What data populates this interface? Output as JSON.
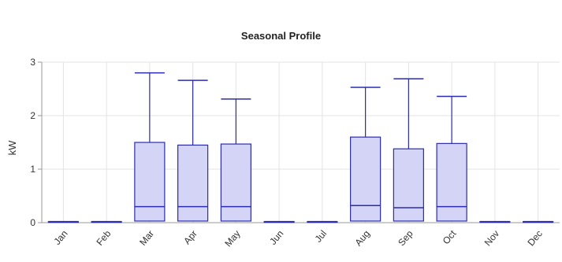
{
  "chart_data": {
    "type": "box",
    "title": "Seasonal Profile",
    "xlabel": "",
    "ylabel": "kW",
    "ylim": [
      0,
      3
    ],
    "yticks": [
      0,
      1,
      2,
      3
    ],
    "grid": true,
    "legend": "none",
    "colors": {
      "box_fill": "#d4d4f6",
      "box_stroke": "#2c2cb0",
      "grid": "#e3e3e3",
      "axis": "#999999"
    },
    "categories": [
      "Jan",
      "Feb",
      "Mar",
      "Apr",
      "May",
      "Jun",
      "Jul",
      "Aug",
      "Sep",
      "Oct",
      "Nov",
      "Dec"
    ],
    "boxes": [
      {
        "min": 0,
        "q1": 0.02,
        "median": 0.02,
        "q3": 0.02,
        "max": 0.02
      },
      {
        "min": 0,
        "q1": 0.02,
        "median": 0.02,
        "q3": 0.02,
        "max": 0.02
      },
      {
        "min": 0,
        "q1": 0.03,
        "median": 0.3,
        "q3": 1.5,
        "max": 2.8
      },
      {
        "min": 0,
        "q1": 0.03,
        "median": 0.3,
        "q3": 1.45,
        "max": 2.66
      },
      {
        "min": 0,
        "q1": 0.03,
        "median": 0.3,
        "q3": 1.47,
        "max": 2.31
      },
      {
        "min": 0,
        "q1": 0.02,
        "median": 0.02,
        "q3": 0.02,
        "max": 0.02
      },
      {
        "min": 0,
        "q1": 0.02,
        "median": 0.02,
        "q3": 0.02,
        "max": 0.02
      },
      {
        "min": 0,
        "q1": 0.03,
        "median": 0.32,
        "q3": 1.6,
        "max": 2.53
      },
      {
        "min": 0,
        "q1": 0.03,
        "median": 0.28,
        "q3": 1.38,
        "max": 2.69
      },
      {
        "min": 0,
        "q1": 0.03,
        "median": 0.3,
        "q3": 1.48,
        "max": 2.36
      },
      {
        "min": 0,
        "q1": 0.02,
        "median": 0.02,
        "q3": 0.02,
        "max": 0.02
      },
      {
        "min": 0,
        "q1": 0.02,
        "median": 0.02,
        "q3": 0.02,
        "max": 0.02
      }
    ]
  }
}
